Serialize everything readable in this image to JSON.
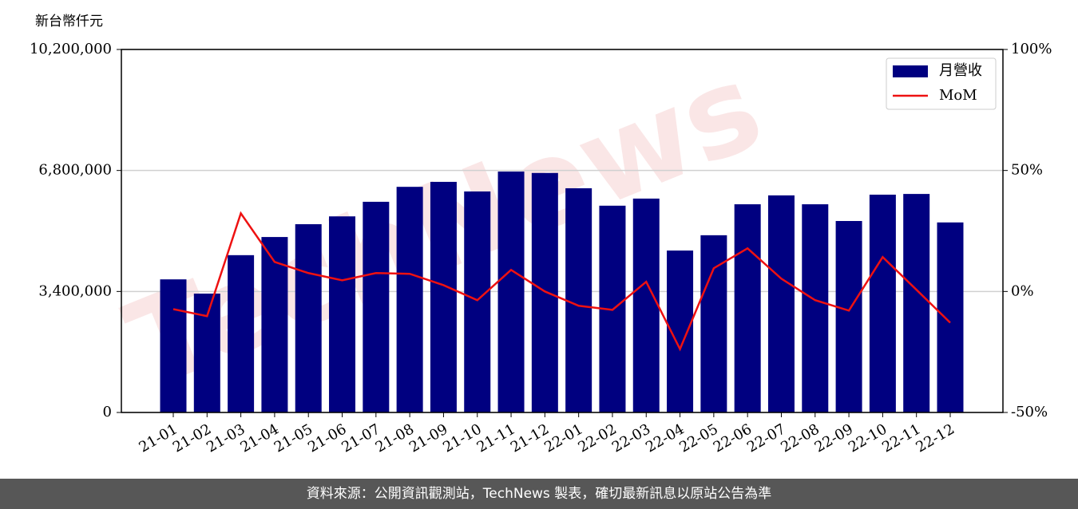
{
  "chart_data": {
    "type": "bar_line",
    "y_label": "新台幣仟元",
    "watermark": "TechNews",
    "categories": [
      "21-01",
      "21-02",
      "21-03",
      "21-04",
      "21-05",
      "21-06",
      "21-07",
      "21-08",
      "21-09",
      "21-10",
      "21-11",
      "21-12",
      "22-01",
      "22-02",
      "22-03",
      "22-04",
      "22-05",
      "22-06",
      "22-07",
      "22-08",
      "22-09",
      "22-10",
      "22-11",
      "22-12"
    ],
    "series": [
      {
        "name": "月營收",
        "type": "bar",
        "color": "#000080",
        "values": [
          3740000,
          3340000,
          4420000,
          4930000,
          5290000,
          5510000,
          5920000,
          6340000,
          6480000,
          6210000,
          6770000,
          6730000,
          6300000,
          5810000,
          6010000,
          4550000,
          4980000,
          5850000,
          6100000,
          5850000,
          5380000,
          6120000,
          6140000,
          5340000
        ]
      },
      {
        "name": "MoM",
        "type": "line",
        "axis": "y2",
        "color": "#ee1111",
        "values": [
          -7.3,
          -10.2,
          32.3,
          12.2,
          7.6,
          4.6,
          7.6,
          7.3,
          2.6,
          -3.6,
          8.9,
          0,
          -5.9,
          -7.6,
          4.0,
          -23.8,
          9.6,
          17.8,
          5.3,
          -3.6,
          -7.9,
          14.2,
          0.7,
          -12.9
        ]
      }
    ],
    "ylim": [
      0,
      10200000
    ],
    "yticks": [
      0,
      {
        "value": 3400000,
        "label": "3,400,000"
      },
      {
        "value": 6800000,
        "label": "6,800,000"
      },
      {
        "value": 10200000,
        "label": "10,200,000"
      }
    ],
    "y2lim": [
      -50,
      100
    ],
    "y2ticks": [
      {
        "value": -50,
        "label": "-50%"
      },
      {
        "value": 0,
        "label": "0%"
      },
      {
        "value": 50,
        "label": "50%"
      },
      {
        "value": 100,
        "label": "100%"
      }
    ],
    "grid": true,
    "legend": "upper right",
    "footer": "資料來源：公開資訊觀測站，TechNews 製表，確切最新訊息以原站公告為準"
  }
}
